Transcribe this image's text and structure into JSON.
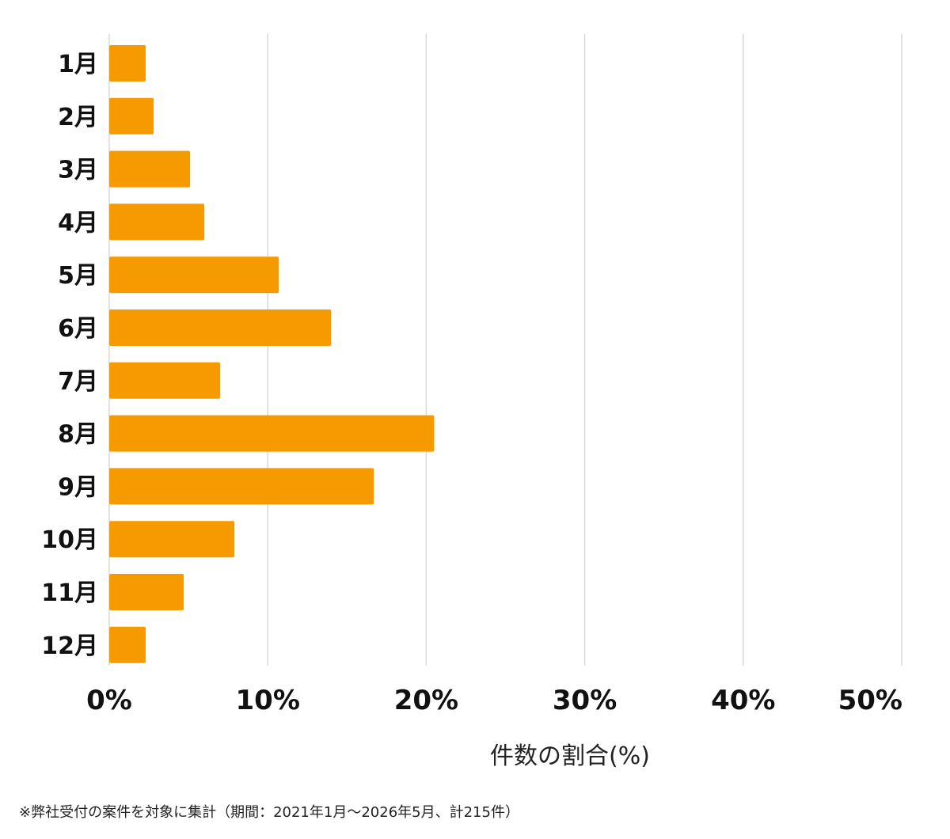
{
  "chart_data": {
    "type": "bar",
    "orientation": "horizontal",
    "categories": [
      "1月",
      "2月",
      "3月",
      "4月",
      "5月",
      "6月",
      "7月",
      "8月",
      "9月",
      "10月",
      "11月",
      "12月"
    ],
    "values": [
      2.3,
      2.8,
      5.1,
      6.0,
      10.7,
      14.0,
      7.0,
      20.5,
      16.7,
      7.9,
      4.7,
      2.3
    ],
    "xlim": [
      0,
      50
    ],
    "xticks": [
      0,
      10,
      20,
      30,
      40,
      50
    ],
    "xtick_labels": [
      "0%",
      "10%",
      "20%",
      "30%",
      "40%",
      "50%"
    ],
    "xlabel": "件数の割合(%)",
    "grid": "vertical",
    "bar_color": "#F59A00",
    "grid_color": "#D9D9D9"
  },
  "footnote": "※弊社受付の案件を対象に集計（期間：2021年1月〜2026年5月、計215件）"
}
